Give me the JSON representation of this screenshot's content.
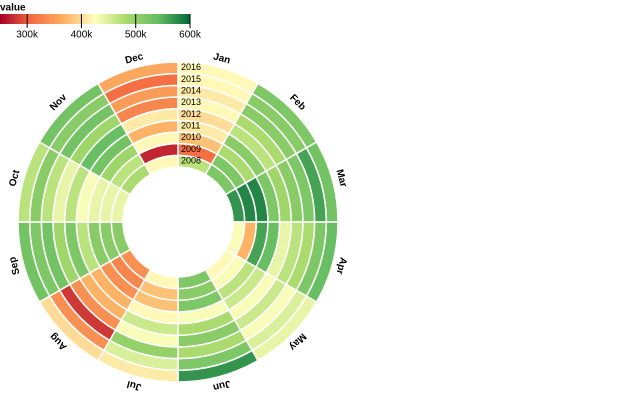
{
  "chart_data": {
    "type": "radial-heatmap",
    "legend_title": "value",
    "colorbar_lim": [
      250000,
      600000
    ],
    "colorbar_ticks": [
      {
        "value": 300000,
        "label": "300k"
      },
      {
        "value": 400000,
        "label": "400k"
      },
      {
        "value": 500000,
        "label": "500k"
      },
      {
        "value": 600000,
        "label": "600k"
      }
    ],
    "color_scale": [
      "#a50026",
      "#f46d43",
      "#fdae61",
      "#ffffbf",
      "#a6d96a",
      "#66bd63",
      "#006837"
    ],
    "categories": [
      "Jan",
      "Feb",
      "Mar",
      "Apr",
      "May",
      "Jun",
      "Jul",
      "Aug",
      "Sep",
      "Oct",
      "Nov",
      "Dec"
    ],
    "series": [
      {
        "name": "2008",
        "values": [
          470000,
          520000,
          570000,
          430000,
          420000,
          520000,
          420000,
          340000,
          510000,
          440000,
          480000,
          420000
        ]
      },
      {
        "name": "2009",
        "values": [
          310000,
          520000,
          580000,
          370000,
          430000,
          510000,
          380000,
          330000,
          510000,
          440000,
          470000,
          270000
        ]
      },
      {
        "name": "2010",
        "values": [
          380000,
          480000,
          580000,
          560000,
          470000,
          520000,
          380000,
          340000,
          510000,
          440000,
          490000,
          420000
        ]
      },
      {
        "name": "2011",
        "values": [
          410000,
          510000,
          520000,
          540000,
          460000,
          430000,
          420000,
          370000,
          470000,
          430000,
          530000,
          370000
        ]
      },
      {
        "name": "2012",
        "values": [
          400000,
          470000,
          490000,
          440000,
          430000,
          480000,
          460000,
          370000,
          520000,
          470000,
          540000,
          410000
        ]
      },
      {
        "name": "2013",
        "values": [
          420000,
          480000,
          510000,
          470000,
          460000,
          510000,
          430000,
          340000,
          490000,
          440000,
          490000,
          330000
        ]
      },
      {
        "name": "2014",
        "values": [
          410000,
          510000,
          520000,
          480000,
          430000,
          480000,
          500000,
          280000,
          530000,
          470000,
          530000,
          350000
        ]
      },
      {
        "name": "2015",
        "values": [
          420000,
          510000,
          560000,
          520000,
          450000,
          520000,
          450000,
          340000,
          520000,
          510000,
          510000,
          310000
        ]
      },
      {
        "name": "2016",
        "values": [
          420000,
          520000,
          530000,
          540000,
          440000,
          570000,
          410000,
          400000,
          530000,
          470000,
          530000,
          360000
        ]
      }
    ]
  }
}
